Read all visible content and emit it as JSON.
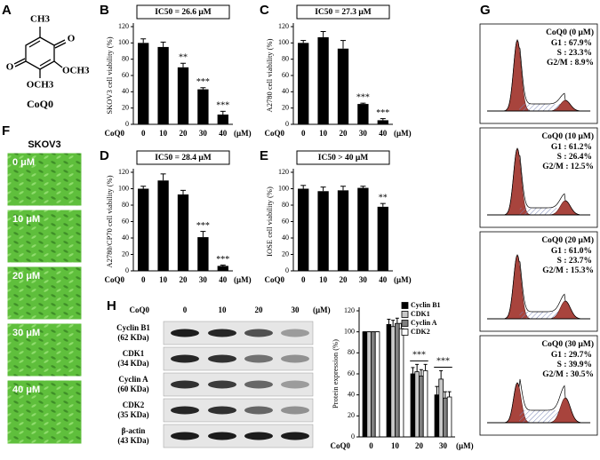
{
  "panel_labels": [
    "A",
    "B",
    "C",
    "D",
    "E",
    "F",
    "G",
    "H"
  ],
  "structure": {
    "methyl": "CH3",
    "oxo_top": "O",
    "oxo_bottom": "O",
    "methoxy_right": "OCH3",
    "methoxy_bottom": "OCH3",
    "name": "CoQ0"
  },
  "chart_data": [
    {
      "type": "bar",
      "title": "IC50 = 26.6 μM",
      "y_label": "SKOV3 cell viability (%)",
      "x_prefix": "CoQ0",
      "x_unit": "(μM)",
      "categories": [
        "0",
        "10",
        "20",
        "30",
        "40"
      ],
      "values": [
        100,
        95,
        70,
        43,
        12
      ],
      "errors": [
        5,
        6,
        5,
        2,
        4
      ],
      "significance": [
        null,
        null,
        "**",
        "***",
        "***"
      ],
      "color": "#000000",
      "ylim": [
        0,
        120
      ],
      "yticks": [
        0,
        20,
        40,
        60,
        80,
        100,
        120
      ]
    },
    {
      "type": "bar",
      "title": "IC50 = 27.3 μM",
      "y_label": "A2780 cell viability (%)",
      "x_prefix": "CoQ0",
      "x_unit": "(μM)",
      "categories": [
        "0",
        "10",
        "20",
        "30",
        "40"
      ],
      "values": [
        100,
        107,
        93,
        25,
        5
      ],
      "errors": [
        3,
        7,
        10,
        1,
        2
      ],
      "significance": [
        null,
        null,
        null,
        "***",
        "***"
      ],
      "color": "#000000",
      "ylim": [
        0,
        120
      ],
      "yticks": [
        0,
        20,
        40,
        60,
        80,
        100,
        120
      ]
    },
    {
      "type": "bar",
      "title": "IC50 = 28.4 μM",
      "y_label": "A2780/CP70 cell viability (%)",
      "x_prefix": "CoQ0",
      "x_unit": "(μM)",
      "categories": [
        "0",
        "10",
        "20",
        "30",
        "40"
      ],
      "values": [
        100,
        110,
        93,
        41,
        6
      ],
      "errors": [
        3,
        8,
        5,
        7,
        1
      ],
      "significance": [
        null,
        null,
        null,
        "***",
        "***"
      ],
      "color": "#000000",
      "ylim": [
        0,
        120
      ],
      "yticks": [
        0,
        20,
        40,
        60,
        80,
        100,
        120
      ]
    },
    {
      "type": "bar",
      "title": "IC50 > 40 μM",
      "y_label": "IOSE cell viability (%)",
      "x_prefix": "CoQ0",
      "x_unit": "(μM)",
      "categories": [
        "0",
        "10",
        "20",
        "30",
        "40"
      ],
      "values": [
        100,
        97,
        98,
        101,
        78
      ],
      "errors": [
        4,
        5,
        5,
        2,
        4
      ],
      "significance": [
        null,
        null,
        null,
        null,
        "**"
      ],
      "color": "#000000",
      "ylim": [
        0,
        120
      ],
      "yticks": [
        0,
        20,
        40,
        60,
        80,
        100,
        120
      ]
    },
    {
      "type": "grouped_bar",
      "y_label": "Protein expression (%)",
      "x_prefix": "CoQ0",
      "x_unit": "(μM)",
      "categories": [
        "0",
        "10",
        "20",
        "30"
      ],
      "series": [
        {
          "name": "Cyclin B1",
          "color": "#000000",
          "values": [
            100,
            107,
            60,
            40
          ],
          "errors": [
            0,
            5,
            6,
            8
          ]
        },
        {
          "name": "CDK1",
          "color": "#c8c8c8",
          "values": [
            100,
            105,
            62,
            55
          ],
          "errors": [
            0,
            6,
            7,
            8
          ]
        },
        {
          "name": "Cyclin A",
          "color": "#808080",
          "values": [
            100,
            108,
            58,
            37
          ],
          "errors": [
            0,
            5,
            6,
            6
          ]
        },
        {
          "name": "CDK2",
          "color": "#ffffff",
          "values": [
            100,
            103,
            63,
            38
          ],
          "errors": [
            0,
            5,
            6,
            5
          ]
        }
      ],
      "significance": [
        null,
        null,
        "***",
        "***"
      ],
      "ylim": [
        0,
        120
      ],
      "yticks": [
        0,
        20,
        40,
        60,
        80,
        100,
        120
      ]
    }
  ],
  "micrographs": {
    "title": "SKOV3",
    "labels": [
      "0 μM",
      "10 μM",
      "20 μM",
      "30 μM",
      "40 μM"
    ]
  },
  "western": {
    "treatment": "CoQ0",
    "doses": [
      "0",
      "10",
      "20",
      "30"
    ],
    "unit": "(μM)",
    "rows": [
      {
        "protein": "Cyclin B1",
        "weight": "(62 KDa)"
      },
      {
        "protein": "CDK1",
        "weight": "(34 KDa)"
      },
      {
        "protein": "Cyclin A",
        "weight": "(60 KDa)"
      },
      {
        "protein": "CDK2",
        "weight": "(35 KDa)"
      },
      {
        "protein": "β-actin",
        "weight": "(43 KDa)"
      }
    ]
  },
  "flow": [
    {
      "title": "CoQ0 (0 μM)",
      "g1": "G1 : 67.9%",
      "s": "S : 23.3%",
      "g2m": "G2/M : 8.9%"
    },
    {
      "title": "CoQ0 (10 μM)",
      "g1": "G1 : 61.2%",
      "s": "S : 26.4%",
      "g2m": "G2/M : 12.5%"
    },
    {
      "title": "CoQ0 (20 μM)",
      "g1": "G1 : 61.0%",
      "s": "S : 23.7%",
      "g2m": "G2/M : 15.3%"
    },
    {
      "title": "CoQ0 (30 μM)",
      "g1": "G1 : 29.7%",
      "s": "S : 39.9%",
      "g2m": "G2/M : 30.5%"
    }
  ]
}
